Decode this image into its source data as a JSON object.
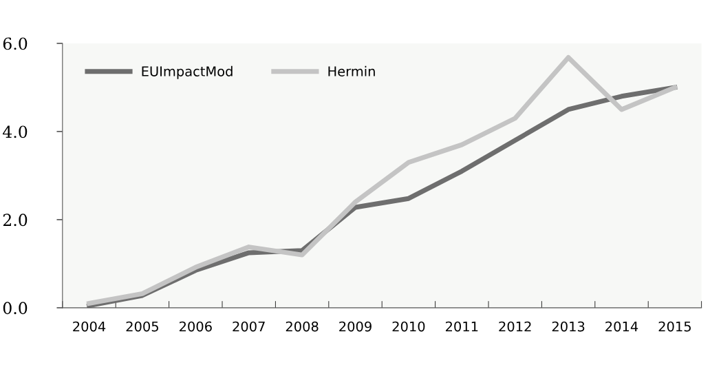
{
  "chart_data": {
    "type": "line",
    "categories": [
      "2004",
      "2005",
      "2006",
      "2007",
      "2008",
      "2009",
      "2010",
      "2011",
      "2012",
      "2013",
      "2014",
      "2015"
    ],
    "series": [
      {
        "name": "EUImpactMod",
        "color": "#6e6e6e",
        "values": [
          0.05,
          0.28,
          0.85,
          1.25,
          1.3,
          2.28,
          2.48,
          3.1,
          3.8,
          4.5,
          4.8,
          5.0
        ]
      },
      {
        "name": "Hermin",
        "color": "#c4c4c4",
        "values": [
          0.1,
          0.32,
          0.92,
          1.38,
          1.2,
          2.4,
          3.3,
          3.7,
          4.3,
          5.68,
          4.5,
          5.0
        ]
      }
    ],
    "ylim": [
      0,
      6
    ],
    "yticks": [
      {
        "value": 0,
        "label": "0.0"
      },
      {
        "value": 2,
        "label": "2.0"
      },
      {
        "value": 4,
        "label": "4.0"
      },
      {
        "value": 6,
        "label": "6.0"
      }
    ],
    "grid": false,
    "legend": "top left",
    "marker": "none",
    "line_style": "solid"
  }
}
